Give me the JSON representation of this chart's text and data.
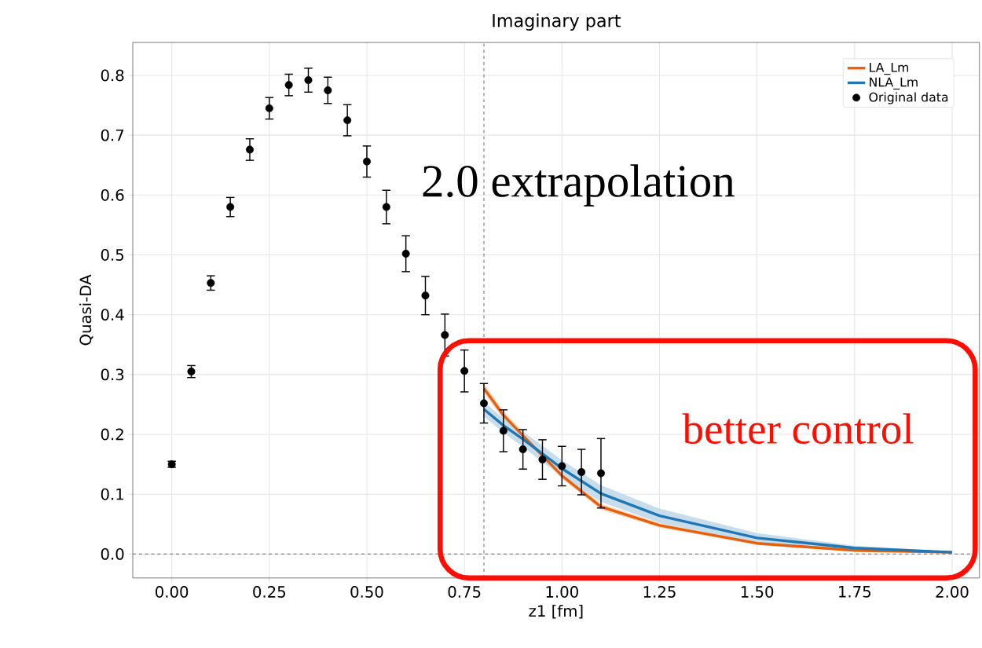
{
  "chart_data": {
    "type": "scatter",
    "title": "Imaginary part",
    "xlabel": "z1 [fm]",
    "ylabel": "Quasi-DA",
    "annotations": [
      "2.0 extrapolation",
      "better control"
    ],
    "series": [
      {
        "name": "LA_Lm",
        "type": "line",
        "marker": "none",
        "color": "#e6600a",
        "x": [
          0.8,
          0.85,
          0.9,
          1.0,
          1.1,
          1.25,
          1.5,
          1.75,
          2.0
        ],
        "values": [
          0.277,
          0.232,
          0.198,
          0.131,
          0.079,
          0.048,
          0.018,
          0.006,
          0.003
        ],
        "lower": [
          0.269,
          0.225,
          0.192,
          0.126,
          0.074,
          0.044,
          0.015,
          0.004,
          0.002
        ],
        "upper": [
          0.285,
          0.239,
          0.204,
          0.136,
          0.084,
          0.052,
          0.021,
          0.008,
          0.004
        ]
      },
      {
        "name": "NLA_Lm",
        "type": "line",
        "marker": "none",
        "color": "#1f77b4",
        "x": [
          0.8,
          0.85,
          0.9,
          1.0,
          1.1,
          1.25,
          1.5,
          1.75,
          2.0
        ],
        "values": [
          0.242,
          0.215,
          0.192,
          0.143,
          0.101,
          0.064,
          0.027,
          0.01,
          0.003
        ],
        "lower": [
          0.23,
          0.203,
          0.179,
          0.129,
          0.087,
          0.052,
          0.019,
          0.006,
          0.002
        ],
        "upper": [
          0.254,
          0.227,
          0.205,
          0.157,
          0.115,
          0.076,
          0.035,
          0.014,
          0.004
        ]
      },
      {
        "name": "Original data",
        "color": "#000000",
        "marker": "circle",
        "x": [
          0.0,
          0.05,
          0.1,
          0.15,
          0.2,
          0.25,
          0.3,
          0.35,
          0.4,
          0.45,
          0.5,
          0.55,
          0.6,
          0.65,
          0.7,
          0.75,
          0.8,
          0.85,
          0.9,
          0.95,
          1.0,
          1.05,
          1.1
        ],
        "values": [
          0.15,
          0.305,
          0.453,
          0.58,
          0.676,
          0.745,
          0.784,
          0.792,
          0.775,
          0.725,
          0.656,
          0.58,
          0.502,
          0.432,
          0.366,
          0.306,
          0.252,
          0.206,
          0.175,
          0.158,
          0.147,
          0.137,
          0.135
        ],
        "errors": [
          0.005,
          0.01,
          0.012,
          0.016,
          0.018,
          0.018,
          0.018,
          0.02,
          0.022,
          0.026,
          0.026,
          0.028,
          0.03,
          0.032,
          0.035,
          0.035,
          0.033,
          0.035,
          0.033,
          0.033,
          0.033,
          0.038,
          0.058
        ]
      }
    ],
    "xlim": [
      -0.1,
      2.07
    ],
    "ylim": [
      -0.04,
      0.855
    ],
    "xticks": [
      {
        "value": 0,
        "label": "0.00"
      },
      {
        "value": 0.25,
        "label": "0.25"
      },
      {
        "value": 0.5,
        "label": "0.50"
      },
      {
        "value": 0.75,
        "label": "0.75"
      },
      {
        "value": 1,
        "label": "1.00"
      },
      {
        "value": 1.25,
        "label": "1.25"
      },
      {
        "value": 1.5,
        "label": "1.50"
      },
      {
        "value": 1.75,
        "label": "1.75"
      },
      {
        "value": 2,
        "label": "2.00"
      }
    ],
    "yticks": [
      {
        "value": 0,
        "label": "0.0"
      },
      0.1,
      0.2,
      0.3,
      0.4,
      0.5,
      0.6,
      0.7,
      0.8
    ],
    "ref_lines": [
      {
        "axis": "y",
        "value": 0,
        "line_style": "dashed",
        "color": "#808080"
      },
      {
        "axis": "x",
        "value": 0.8,
        "line_style": "dashed",
        "color": "#808080"
      }
    ],
    "grid": true,
    "legend": "top right"
  }
}
